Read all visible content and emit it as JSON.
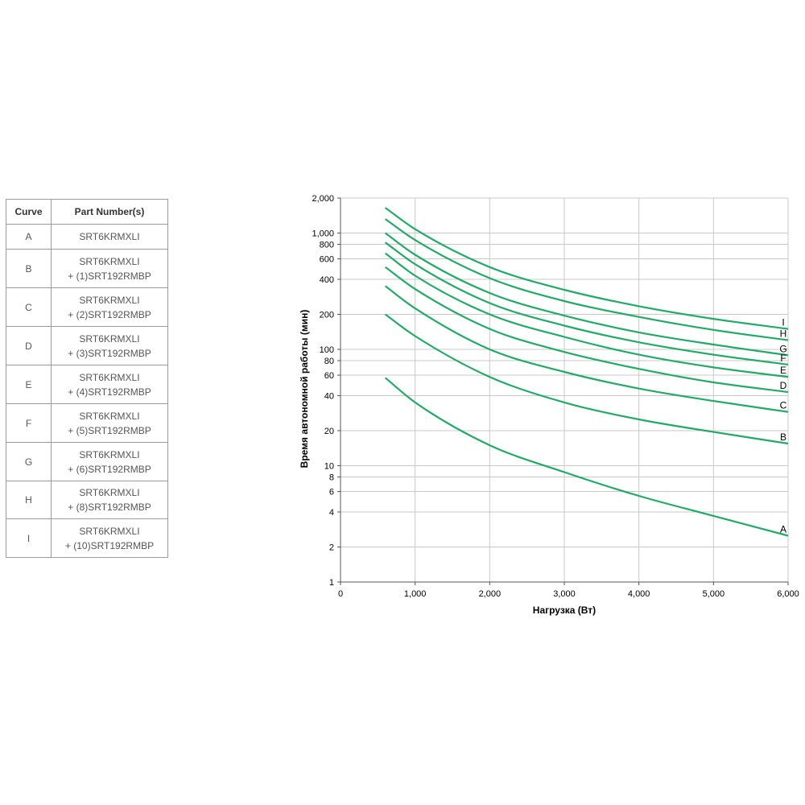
{
  "table": {
    "headers": {
      "curve": "Curve",
      "parts": "Part Number(s)"
    },
    "rows": [
      {
        "curve": "A",
        "line1": "SRT6KRMXLI",
        "line2": ""
      },
      {
        "curve": "B",
        "line1": "SRT6KRMXLI",
        "line2": "+ (1)SRT192RMBP"
      },
      {
        "curve": "C",
        "line1": "SRT6KRMXLI",
        "line2": "+ (2)SRT192RMBP"
      },
      {
        "curve": "D",
        "line1": "SRT6KRMXLI",
        "line2": "+ (3)SRT192RMBP"
      },
      {
        "curve": "E",
        "line1": "SRT6KRMXLI",
        "line2": "+ (4)SRT192RMBP"
      },
      {
        "curve": "F",
        "line1": "SRT6KRMXLI",
        "line2": "+ (5)SRT192RMBP"
      },
      {
        "curve": "G",
        "line1": "SRT6KRMXLI",
        "line2": "+ (6)SRT192RMBP"
      },
      {
        "curve": "H",
        "line1": "SRT6KRMXLI",
        "line2": "+ (8)SRT192RMBP"
      },
      {
        "curve": "I",
        "line1": "SRT6KRMXLI",
        "line2": "+ (10)SRT192RMBP"
      }
    ]
  },
  "chart_data": {
    "type": "line",
    "xlabel": "Нагрузка (Вт)",
    "ylabel": "Время автономной работы (мин)",
    "xlim": [
      0,
      6000
    ],
    "ylim": [
      1,
      2000
    ],
    "yscale": "log",
    "grid": true,
    "line_color": "#22aa66",
    "x_ticks": [
      0,
      1000,
      2000,
      3000,
      4000,
      5000,
      6000
    ],
    "x_tick_labels": [
      "0",
      "1,000",
      "2,000",
      "3,000",
      "4,000",
      "5,000",
      "6,000"
    ],
    "y_ticks": [
      1,
      2,
      4,
      6,
      8,
      10,
      20,
      40,
      60,
      80,
      100,
      200,
      400,
      600,
      800,
      1000,
      2000
    ],
    "y_tick_labels": [
      "1",
      "2",
      "4",
      "6",
      "8",
      "10",
      "20",
      "40",
      "60",
      "80",
      "100",
      "200",
      "400",
      "600",
      "800",
      "1,000",
      "2,000"
    ],
    "series": [
      {
        "name": "A",
        "x": [
          600,
          1000,
          2000,
          3000,
          4000,
          5000,
          6000
        ],
        "values": [
          57,
          35,
          15,
          8.8,
          5.5,
          3.7,
          2.5
        ]
      },
      {
        "name": "B",
        "x": [
          600,
          1000,
          2000,
          3000,
          4000,
          5000,
          6000
        ],
        "values": [
          200,
          130,
          58,
          35,
          25,
          19.5,
          15.5
        ]
      },
      {
        "name": "C",
        "x": [
          600,
          1000,
          2000,
          3000,
          4000,
          5000,
          6000
        ],
        "values": [
          350,
          225,
          100,
          64,
          46,
          36,
          29
        ]
      },
      {
        "name": "D",
        "x": [
          600,
          1000,
          2000,
          3000,
          4000,
          5000,
          6000
        ],
        "values": [
          510,
          330,
          150,
          95,
          68,
          52,
          43
        ]
      },
      {
        "name": "E",
        "x": [
          600,
          1000,
          2000,
          3000,
          4000,
          5000,
          6000
        ],
        "values": [
          670,
          430,
          200,
          128,
          90,
          70,
          58
        ]
      },
      {
        "name": "F",
        "x": [
          600,
          1000,
          2000,
          3000,
          4000,
          5000,
          6000
        ],
        "values": [
          830,
          540,
          250,
          160,
          115,
          90,
          74
        ]
      },
      {
        "name": "G",
        "x": [
          600,
          1000,
          2000,
          3000,
          4000,
          5000,
          6000
        ],
        "values": [
          1000,
          650,
          305,
          195,
          140,
          110,
          89
        ]
      },
      {
        "name": "H",
        "x": [
          600,
          1000,
          2000,
          3000,
          4000,
          5000,
          6000
        ],
        "values": [
          1320,
          870,
          410,
          260,
          190,
          147,
          120
        ]
      },
      {
        "name": "I",
        "x": [
          600,
          1000,
          2000,
          3000,
          4000,
          5000,
          6000
        ],
        "values": [
          1650,
          1080,
          510,
          325,
          235,
          183,
          150
        ]
      }
    ]
  }
}
